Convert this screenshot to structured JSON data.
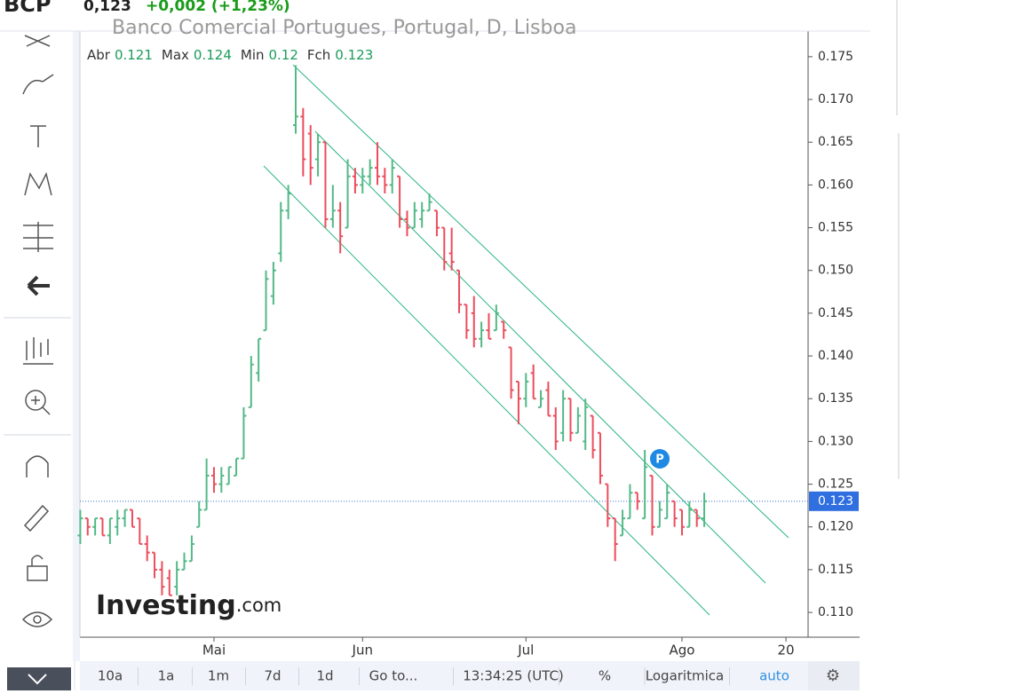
{
  "header": {
    "symbol": "BCP",
    "price": "0,123",
    "change": "+0,002 (+1,23%)",
    "subtitle": "Banco Comercial Portugues, Portugal, D, Lisboa"
  },
  "legend": [
    {
      "label": "Abr",
      "value": 0.121
    },
    {
      "label": "Max",
      "value": 0.124
    },
    {
      "label": "Min",
      "value": 0.12
    },
    {
      "label": "Fch",
      "value": 0.123
    }
  ],
  "chart_data": {
    "type": "ohlc",
    "up_color": "#53b987",
    "down_color": "#eb4d5c",
    "categories": [
      null,
      null,
      null,
      null,
      null,
      null,
      null,
      null,
      null,
      null,
      null,
      null,
      null,
      null,
      null,
      null,
      null,
      null,
      "Mai",
      null,
      null,
      null,
      null,
      null,
      null,
      null,
      null,
      null,
      null,
      null,
      null,
      null,
      null,
      null,
      null,
      null,
      null,
      null,
      "Jun",
      null,
      null,
      null,
      null,
      null,
      null,
      null,
      null,
      null,
      null,
      null,
      null,
      null,
      null,
      null,
      null,
      null,
      null,
      null,
      null,
      null,
      "Jul",
      null,
      null,
      null,
      null,
      null,
      null,
      null,
      null,
      null,
      null,
      null,
      null,
      null,
      null,
      null,
      null,
      null,
      null,
      null,
      null,
      "Ago",
      null,
      null,
      null,
      null,
      null,
      null,
      null,
      null,
      null,
      null,
      null,
      null,
      null,
      "20"
    ],
    "ohlc": [
      [
        0.119,
        0.122,
        0.118,
        0.121
      ],
      [
        0.121,
        0.121,
        0.119,
        0.12
      ],
      [
        0.12,
        0.121,
        0.119,
        0.121
      ],
      [
        0.121,
        0.121,
        0.119,
        0.119
      ],
      [
        0.119,
        0.121,
        0.118,
        0.121
      ],
      [
        0.12,
        0.122,
        0.119,
        0.121
      ],
      [
        0.121,
        0.122,
        0.12,
        0.122
      ],
      [
        0.122,
        0.122,
        0.12,
        0.12
      ],
      [
        0.121,
        0.121,
        0.118,
        0.118
      ],
      [
        0.118,
        0.119,
        0.116,
        0.117
      ],
      [
        0.117,
        0.117,
        0.114,
        0.115
      ],
      [
        0.115,
        0.116,
        0.112,
        0.113
      ],
      [
        0.114,
        0.115,
        0.112,
        0.112
      ],
      [
        0.113,
        0.116,
        0.112,
        0.115
      ],
      [
        0.115,
        0.117,
        0.115,
        0.116
      ],
      [
        0.116,
        0.119,
        0.116,
        0.118
      ],
      [
        0.12,
        0.123,
        0.12,
        0.122
      ],
      [
        0.122,
        0.128,
        0.122,
        0.126
      ],
      [
        0.126,
        0.127,
        0.124,
        0.125
      ],
      [
        0.125,
        0.127,
        0.124,
        0.126
      ],
      [
        0.125,
        0.127,
        0.125,
        0.127
      ],
      [
        0.126,
        0.128,
        0.126,
        0.128
      ],
      [
        0.128,
        0.134,
        0.128,
        0.133
      ],
      [
        0.134,
        0.14,
        0.134,
        0.139
      ],
      [
        0.138,
        0.142,
        0.137,
        0.142
      ],
      [
        0.143,
        0.15,
        0.143,
        0.149
      ],
      [
        0.147,
        0.151,
        0.146,
        0.15
      ],
      [
        0.152,
        0.158,
        0.151,
        0.157
      ],
      [
        0.157,
        0.16,
        0.156,
        0.159
      ],
      [
        0.167,
        0.174,
        0.166,
        0.168
      ],
      [
        0.168,
        0.169,
        0.161,
        0.163
      ],
      [
        0.166,
        0.167,
        0.16,
        0.162
      ],
      [
        0.163,
        0.166,
        0.161,
        0.165
      ],
      [
        0.165,
        0.165,
        0.155,
        0.156
      ],
      [
        0.156,
        0.16,
        0.155,
        0.157
      ],
      [
        0.157,
        0.158,
        0.152,
        0.154
      ],
      [
        0.155,
        0.163,
        0.155,
        0.161
      ],
      [
        0.161,
        0.162,
        0.159,
        0.16
      ],
      [
        0.16,
        0.162,
        0.159,
        0.161
      ],
      [
        0.161,
        0.163,
        0.16,
        0.162
      ],
      [
        0.162,
        0.165,
        0.16,
        0.161
      ],
      [
        0.161,
        0.162,
        0.159,
        0.16
      ],
      [
        0.16,
        0.163,
        0.159,
        0.162
      ],
      [
        0.161,
        0.161,
        0.155,
        0.156
      ],
      [
        0.156,
        0.157,
        0.154,
        0.155
      ],
      [
        0.155,
        0.158,
        0.155,
        0.157
      ],
      [
        0.156,
        0.158,
        0.155,
        0.157
      ],
      [
        0.157,
        0.159,
        0.157,
        0.158
      ],
      [
        0.157,
        0.157,
        0.154,
        0.155
      ],
      [
        0.155,
        0.155,
        0.15,
        0.151
      ],
      [
        0.152,
        0.155,
        0.15,
        0.151
      ],
      [
        0.15,
        0.15,
        0.145,
        0.146
      ],
      [
        0.146,
        0.146,
        0.142,
        0.143
      ],
      [
        0.145,
        0.147,
        0.141,
        0.142
      ],
      [
        0.142,
        0.144,
        0.141,
        0.143
      ],
      [
        0.143,
        0.145,
        0.142,
        0.142
      ],
      [
        0.143,
        0.146,
        0.143,
        0.145
      ],
      [
        0.144,
        0.144,
        0.142,
        0.143
      ],
      [
        0.141,
        0.141,
        0.135,
        0.136
      ],
      [
        0.137,
        0.137,
        0.132,
        0.135
      ],
      [
        0.135,
        0.138,
        0.134,
        0.137
      ],
      [
        0.138,
        0.139,
        0.135,
        0.135
      ],
      [
        0.134,
        0.136,
        0.134,
        0.135
      ],
      [
        0.136,
        0.137,
        0.133,
        0.133
      ],
      [
        0.133,
        0.134,
        0.129,
        0.13
      ],
      [
        0.131,
        0.136,
        0.13,
        0.135
      ],
      [
        0.135,
        0.135,
        0.13,
        0.131
      ],
      [
        0.131,
        0.134,
        0.131,
        0.133
      ],
      [
        0.13,
        0.135,
        0.129,
        0.134
      ],
      [
        0.133,
        0.133,
        0.128,
        0.129
      ],
      [
        0.131,
        0.131,
        0.125,
        0.126
      ],
      [
        0.125,
        0.125,
        0.12,
        0.121
      ],
      [
        0.121,
        0.121,
        0.116,
        0.118
      ],
      [
        0.119,
        0.122,
        0.119,
        0.121
      ],
      [
        0.121,
        0.125,
        0.121,
        0.124
      ],
      [
        0.124,
        0.124,
        0.122,
        0.123
      ],
      [
        0.121,
        0.129,
        0.121,
        0.127
      ],
      [
        0.126,
        0.126,
        0.119,
        0.12
      ],
      [
        0.12,
        0.123,
        0.12,
        0.122
      ],
      [
        0.121,
        0.125,
        0.121,
        0.124
      ],
      [
        0.123,
        0.123,
        0.12,
        0.121
      ],
      [
        0.122,
        0.122,
        0.119,
        0.12
      ],
      [
        0.12,
        0.123,
        0.12,
        0.122
      ],
      [
        0.122,
        0.122,
        0.12,
        0.121
      ],
      [
        0.121,
        0.124,
        0.12,
        0.123
      ],
      null,
      null,
      null,
      null,
      null,
      null,
      null,
      null,
      null,
      null,
      null
    ],
    "ylim": [
      0.1071,
      0.178
    ],
    "yticks": [
      {
        "value": 0.11,
        "label": "0.110"
      },
      0.115,
      {
        "value": 0.12,
        "label": "0.120"
      },
      0.125,
      {
        "value": 0.13,
        "label": "0.130"
      },
      0.135,
      {
        "value": 0.14,
        "label": "0.140"
      },
      0.145,
      {
        "value": 0.15,
        "label": "0.150"
      },
      0.155,
      {
        "value": 0.16,
        "label": "0.160"
      },
      0.165,
      {
        "value": 0.17,
        "label": "0.170"
      },
      0.175
    ],
    "last_price": 0.123,
    "marker": "P",
    "watermark": "Investing",
    "watermark_suffix": ".com"
  },
  "toolbar": [
    "10a",
    "1a",
    "1m",
    "7d",
    "1d",
    "Go to...",
    "13:34:25 (UTC)",
    "%",
    "Logaritmica",
    "auto"
  ]
}
